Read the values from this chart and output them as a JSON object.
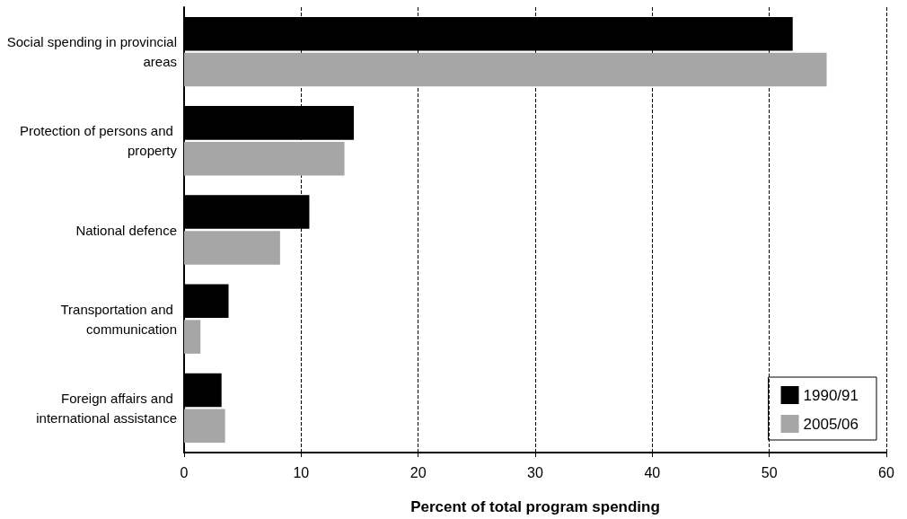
{
  "chart_data": {
    "type": "bar",
    "orientation": "horizontal",
    "xlabel": "Percent of total program spending",
    "categories": [
      "Social spending in provincial areas",
      "Protection of persons and property",
      "National defence",
      "Transportation and communication",
      "Foreign affairs and international assistance"
    ],
    "series": [
      {
        "name": "1990/91",
        "color": "#000000",
        "values": [
          52.0,
          14.5,
          10.7,
          3.8,
          3.2
        ]
      },
      {
        "name": "2005/06",
        "color": "#a6a6a6",
        "values": [
          54.9,
          13.7,
          8.2,
          1.4,
          3.5
        ]
      }
    ],
    "xlim": [
      0,
      60
    ],
    "xticks": [
      0,
      10,
      20,
      30,
      40,
      50,
      60
    ],
    "grid": "x",
    "legend": "bottom right"
  }
}
